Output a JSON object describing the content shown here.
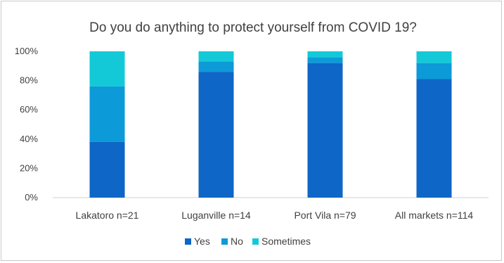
{
  "chart_data": {
    "type": "bar",
    "stacked": true,
    "title": "Do you do anything to protect yourself from COVID 19?",
    "categories": [
      "Lakatoro n=21",
      "Luganville n=14",
      "Port Vila n=79",
      "All markets n=114"
    ],
    "series": [
      {
        "name": "Yes",
        "color": "#0e66c6",
        "values": [
          38,
          86,
          92,
          81
        ]
      },
      {
        "name": "No",
        "color": "#0d9ad8",
        "values": [
          38,
          7,
          4,
          11
        ]
      },
      {
        "name": "Sometimes",
        "color": "#13c9d8",
        "values": [
          24,
          7,
          4,
          8
        ]
      }
    ],
    "ylim": [
      0,
      100
    ],
    "yticks": [
      "0%",
      "20%",
      "40%",
      "60%",
      "80%",
      "100%"
    ],
    "grid": false,
    "legend": "bottom"
  }
}
